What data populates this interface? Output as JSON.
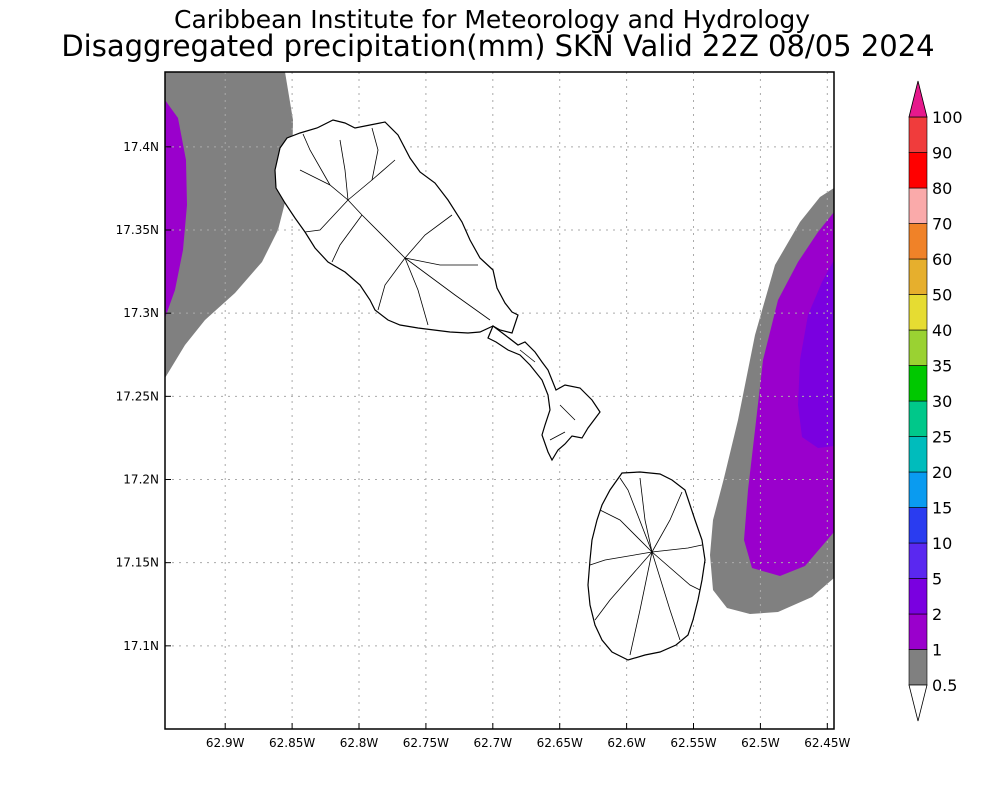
{
  "title": {
    "line1": "Caribbean Institute for Meteorology and Hydrology",
    "line2": "Disaggregated precipitation(mm) SKN Valid 22Z 08/05 2024"
  },
  "map": {
    "lon_range": [
      -62.945,
      -62.445
    ],
    "lat_range": [
      17.05,
      17.445
    ],
    "lon_ticks": [
      {
        "value": -62.9,
        "label": "62.9W"
      },
      {
        "value": -62.85,
        "label": "62.85W"
      },
      {
        "value": -62.8,
        "label": "62.8W"
      },
      {
        "value": -62.75,
        "label": "62.75W"
      },
      {
        "value": -62.7,
        "label": "62.7W"
      },
      {
        "value": -62.65,
        "label": "62.65W"
      },
      {
        "value": -62.6,
        "label": "62.6W"
      },
      {
        "value": -62.55,
        "label": "62.55W"
      },
      {
        "value": -62.5,
        "label": "62.5W"
      },
      {
        "value": -62.45,
        "label": "62.45W"
      }
    ],
    "lat_ticks": [
      {
        "value": 17.4,
        "label": "17.4N"
      },
      {
        "value": 17.35,
        "label": "17.35N"
      },
      {
        "value": 17.3,
        "label": "17.3N"
      },
      {
        "value": 17.25,
        "label": "17.25N"
      },
      {
        "value": 17.2,
        "label": "17.2N"
      },
      {
        "value": 17.15,
        "label": "17.15N"
      },
      {
        "value": 17.1,
        "label": "17.1N"
      }
    ],
    "grid": "dotted",
    "islands": [
      "Saint Kitts",
      "Nevis"
    ],
    "precip_areas": [
      "west-edge 0.5-1mm band with 1-2mm core",
      "east 0.5-1mm band with 1-2mm and 2-5mm cores"
    ]
  },
  "colorbar": {
    "levels": [
      {
        "label": "0.5",
        "color": "#ffffff"
      },
      {
        "label": "1",
        "color": "#808080"
      },
      {
        "label": "2",
        "color": "#9a00cc"
      },
      {
        "label": "5",
        "color": "#7a00e0"
      },
      {
        "label": "10",
        "color": "#5a28f0"
      },
      {
        "label": "15",
        "color": "#2a3cf0"
      },
      {
        "label": "20",
        "color": "#0a9bf0"
      },
      {
        "label": "25",
        "color": "#00bcbc"
      },
      {
        "label": "30",
        "color": "#00c88a"
      },
      {
        "label": "35",
        "color": "#00c800"
      },
      {
        "label": "40",
        "color": "#9ad232"
      },
      {
        "label": "50",
        "color": "#e6dc32"
      },
      {
        "label": "60",
        "color": "#e6af2d"
      },
      {
        "label": "70",
        "color": "#f08228"
      },
      {
        "label": "80",
        "color": "#faaaaa"
      },
      {
        "label": "90",
        "color": "#ff0000"
      },
      {
        "label": "100",
        "color": "#f03c3c"
      }
    ],
    "top_arrow_color": "#e6198c",
    "bottom_arrow_color": "#ffffff"
  }
}
